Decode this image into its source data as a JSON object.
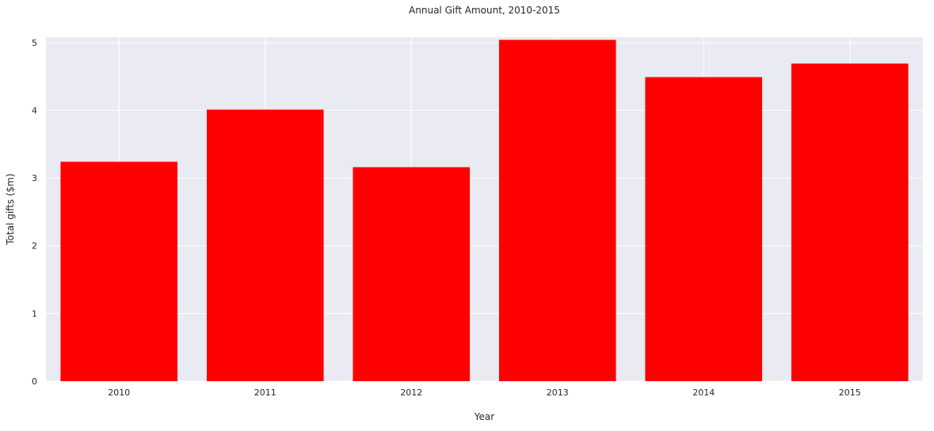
{
  "chart_data": {
    "type": "bar",
    "title": "Annual Gift Amount, 2010-2015",
    "xlabel": "Year",
    "ylabel": "Total gifts ($m)",
    "categories": [
      "2010",
      "2011",
      "2012",
      "2013",
      "2014",
      "2015"
    ],
    "values": [
      3.24,
      4.01,
      3.16,
      5.04,
      4.49,
      4.69
    ],
    "ylim": [
      0,
      5.08
    ],
    "yticks": [
      0,
      1,
      2,
      3,
      4,
      5
    ],
    "grid": true,
    "legend": "none",
    "colors": {
      "bar": "#ff0000",
      "plot_background": "#eaeaf2",
      "grid": "#ffffff"
    }
  }
}
